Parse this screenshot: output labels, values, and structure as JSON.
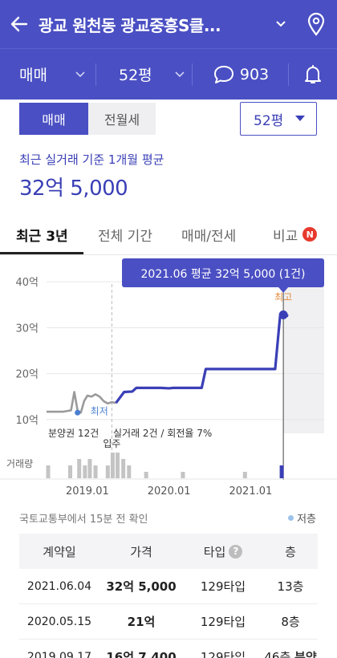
{
  "header": {
    "title": "광교 원천동 광교중흥S클...",
    "back_icon": "arrow-left-icon",
    "dropdown_icon": "chevron-down-icon",
    "location_icon": "map-pin-icon"
  },
  "filter_bar": {
    "trade_type": "매매",
    "area": "52평",
    "comment_count": "903",
    "comment_icon": "speech-bubble-icon",
    "alarm_icon": "bell-icon"
  },
  "trade_tabs": {
    "active": "매매",
    "inactive": "전월세"
  },
  "area_select": {
    "value": "52평"
  },
  "average": {
    "label": "최근 실거래 기준 1개월 평균",
    "value": "32억 5,000"
  },
  "period_tabs": {
    "items": [
      "최근 3년",
      "전체 기간",
      "매매/전세",
      "비교"
    ],
    "active": "최근 3년",
    "badge": "N"
  },
  "chart_data": {
    "type": "line",
    "y_tick_labels": [
      "40억",
      "30억",
      "20억",
      "10억"
    ],
    "y_ticks": [
      40,
      30,
      20,
      10
    ],
    "ylim": [
      7,
      43
    ],
    "x_tick_labels": [
      "2019.01",
      "2020.01",
      "2021.01"
    ],
    "x_ticks": [
      2019.0,
      2020.0,
      2021.0
    ],
    "xlim": [
      2018.5,
      2021.9
    ],
    "pre_sale_series": {
      "x": [
        2018.5,
        2018.7,
        2018.8,
        2018.84,
        2018.88,
        2018.92,
        2018.96,
        2019.0,
        2019.05,
        2019.1,
        2019.15,
        2019.2,
        2019.25,
        2019.3,
        2019.35
      ],
      "y": [
        11.7,
        11.7,
        12.0,
        16.0,
        12.0,
        11.5,
        14.0,
        15.2,
        15.0,
        15.5,
        15.0,
        14.0,
        13.5,
        13.8,
        13.6
      ]
    },
    "sale_series": {
      "x": [
        2019.35,
        2019.45,
        2019.55,
        2019.6,
        2019.9,
        2020.0,
        2020.05,
        2020.4,
        2020.45,
        2020.5,
        2020.9,
        2021.0,
        2021.3,
        2021.36,
        2021.4,
        2021.46
      ],
      "y": [
        13.6,
        16.0,
        16.1,
        16.9,
        16.9,
        16.8,
        16.9,
        16.9,
        21.0,
        21.0,
        21.0,
        21.0,
        21.0,
        32.5,
        32.8,
        32.6
      ]
    },
    "min_point": {
      "x": 2018.88,
      "y": 11.5,
      "label": "최저"
    },
    "max_point": {
      "x": 2021.4,
      "y": 32.8,
      "label": "최고"
    },
    "tooltip": "2021.06 평균 32억 5,000 (1건)",
    "stats_text": "분양권 12건",
    "stats_text2": "실거래 2건 / 회전율 7%",
    "move_in_label": "입주",
    "move_in_x": 2019.3,
    "volume_label": "거래량",
    "volume_bars": [
      {
        "x": 2018.52,
        "v": 2
      },
      {
        "x": 2018.79,
        "v": 2
      },
      {
        "x": 2018.9,
        "v": 3
      },
      {
        "x": 2018.97,
        "v": 2
      },
      {
        "x": 2019.03,
        "v": 3
      },
      {
        "x": 2019.1,
        "v": 2
      },
      {
        "x": 2019.25,
        "v": 2
      },
      {
        "x": 2019.31,
        "v": 4
      },
      {
        "x": 2019.37,
        "v": 4
      },
      {
        "x": 2019.44,
        "v": 3
      },
      {
        "x": 2019.51,
        "v": 2
      },
      {
        "x": 2019.72,
        "v": 1
      },
      {
        "x": 2020.17,
        "v": 1
      },
      {
        "x": 2020.93,
        "v": 1
      },
      {
        "x": 2021.38,
        "v": 2
      }
    ],
    "shaded_from_x": 2021.4,
    "colors": {
      "sale_line": "#3a3fb6",
      "pre_sale_line": "#9a9a9a",
      "shaded": "#f0f0f2",
      "volume": "#c4c4c4",
      "volume_highlight": "#3a3fb6",
      "min_label": "#4a7fd0",
      "max_label": "#e08a3c"
    }
  },
  "source_note": "국토교통부에서 15분 전 확인",
  "floor_legend": "저층",
  "table": {
    "headers": [
      "계약일",
      "가격",
      "타입",
      "층"
    ],
    "help_icon": "question-icon",
    "rows": [
      {
        "date": "2021.06.04",
        "price": "32억 5,000",
        "type": "129타입",
        "floor": "13층",
        "tag": ""
      },
      {
        "date": "2020.05.15",
        "price": "21억",
        "type": "129타입",
        "floor": "8층",
        "tag": ""
      },
      {
        "date": "2019.09.17",
        "price": "16억 7,400",
        "type": "129타입",
        "floor": "46층",
        "tag": "분양"
      }
    ]
  }
}
